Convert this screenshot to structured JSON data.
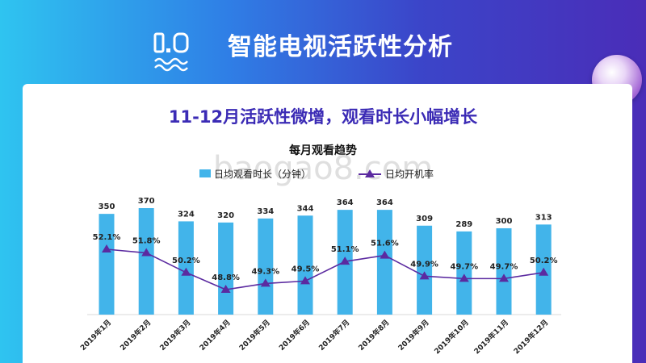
{
  "header": {
    "section_number": "1.0",
    "title": "智能电视活跃性分析"
  },
  "subtitle": "11-12月活跃性微增，观看时长小幅增长",
  "watermark": "baogao8.com",
  "colors": {
    "bar": "#42b4ea",
    "line": "#5b2aa0",
    "subtitle": "#3b2bb5"
  },
  "chart_data": {
    "type": "bar",
    "title": "每月观看趋势",
    "categories": [
      "2019年1月",
      "2019年2月",
      "2019年3月",
      "2019年4月",
      "2019年5月",
      "2019年6月",
      "2019年7月",
      "2019年8月",
      "2019年9月",
      "2019年10月",
      "2019年11月",
      "2019年12月"
    ],
    "series": [
      {
        "name": "日均观看时长（分钟）",
        "type": "bar",
        "values": [
          350,
          370,
          324,
          320,
          334,
          344,
          364,
          364,
          309,
          289,
          300,
          313
        ],
        "labels": [
          "350",
          "370",
          "324",
          "320",
          "334",
          "344",
          "364",
          "364",
          "309",
          "289",
          "300",
          "313"
        ]
      },
      {
        "name": "日均开机率",
        "type": "line",
        "values": [
          52.1,
          51.8,
          50.2,
          48.8,
          49.3,
          49.5,
          51.1,
          51.6,
          49.9,
          49.7,
          49.7,
          50.2
        ],
        "labels": [
          "52.1%",
          "51.8%",
          "50.2%",
          "48.8%",
          "49.3%",
          "49.5%",
          "51.1%",
          "51.6%",
          "49.9%",
          "49.7%",
          "49.7%",
          "50.2%"
        ]
      }
    ],
    "legend": "top",
    "grid": false
  }
}
